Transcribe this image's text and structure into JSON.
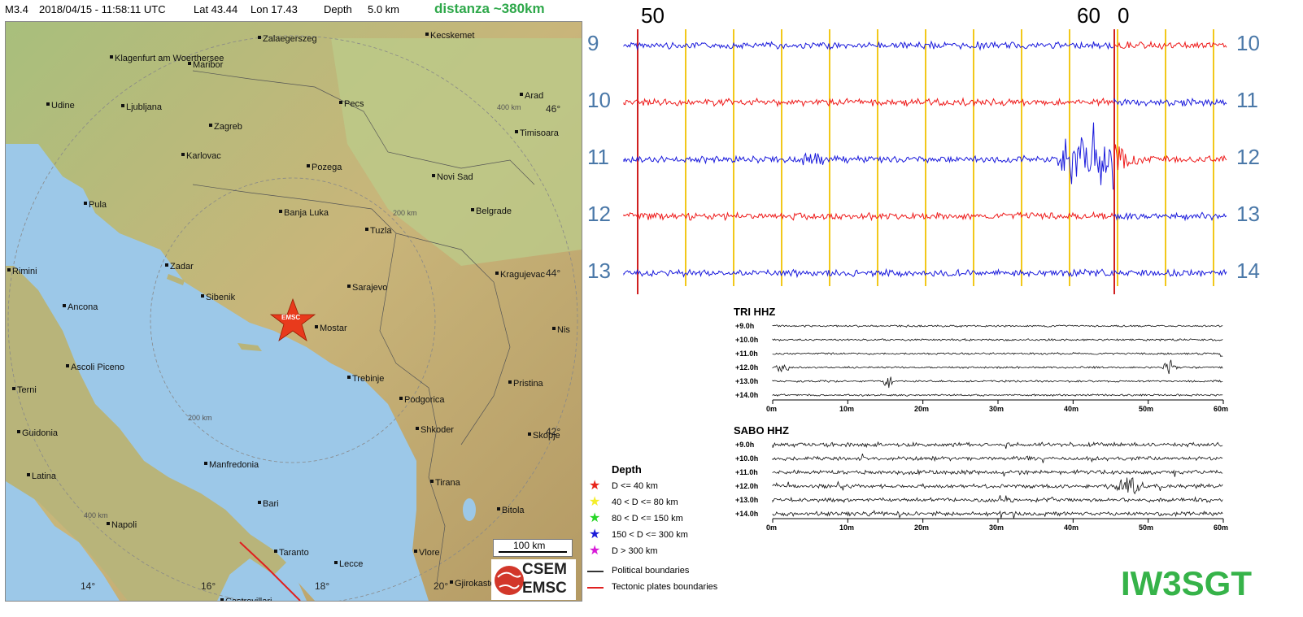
{
  "header": {
    "magnitude": "M3.4",
    "datetime": "2018/04/15 - 11:58:11 UTC",
    "lat": "Lat 43.44",
    "lon": "Lon 17.43",
    "depth": "Depth",
    "depth_value": "5.0 km",
    "distance": "distanza ~380km"
  },
  "map": {
    "cities": [
      "Zalaegerszeg",
      "Kecskemet",
      "Klagenfurt am Woerthersee",
      "Maribor",
      "Udine",
      "Ljubljana",
      "Pecs",
      "Arad",
      "Zagreb",
      "Timisoara",
      "Karlovac",
      "Pozega",
      "Novi Sad",
      "Pula",
      "Banja Luka",
      "Belgrade",
      "Tuzla",
      "Rimini",
      "Zadar",
      "Kragujevac",
      "Sarajevo",
      "Ancona",
      "Sibenik",
      "Mostar",
      "Nis",
      "Ascoli Piceno",
      "Trebinje",
      "Pristina",
      "Terni",
      "Podgorica",
      "Shkoder",
      "Guidonia",
      "Skopje",
      "Manfredonia",
      "Latina",
      "Tirana",
      "Bari",
      "Bitola",
      "Napoli",
      "Taranto",
      "Lecce",
      "Vlore",
      "Gjirokaster",
      "Castrovillari"
    ],
    "lat_labels": [
      "46°",
      "44°",
      "42°"
    ],
    "lon_labels": [
      "14°",
      "16°",
      "18°",
      "20°"
    ],
    "ring_labels": [
      "400 km",
      "200 km",
      "200 km",
      "400 km"
    ],
    "epicenter_label": "EMSC",
    "scale_label": "100 km",
    "logo_top": "CSEM",
    "logo_bottom": "EMSC",
    "colors": {
      "sea": "#9cc8e8",
      "land": "#c8c690",
      "epicenter": "#e83a1c",
      "tectonic": "#e02020"
    }
  },
  "helicorder": {
    "left_labels": [
      "9",
      "10",
      "11",
      "12",
      "13"
    ],
    "right_labels": [
      "10",
      "11",
      "12",
      "13",
      "14"
    ],
    "top_marks": [
      "50",
      "60",
      "0"
    ],
    "trace_colors": [
      "#1a1adc",
      "#ee1a1a",
      "#1a1adc",
      "#ee1a1a",
      "#1a1adc"
    ],
    "event_row": 2
  },
  "tri": {
    "title": "TRI HHZ",
    "rows": [
      "+9.0h",
      "+10.0h",
      "+11.0h",
      "+12.0h",
      "+13.0h",
      "+14.0h"
    ],
    "ticks": [
      "0m",
      "10m",
      "20m",
      "30m",
      "40m",
      "50m",
      "60m"
    ]
  },
  "sabo": {
    "title": "SABO HHZ",
    "rows": [
      "+9.0h",
      "+10.0h",
      "+11.0h",
      "+12.0h",
      "+13.0h",
      "+14.0h"
    ],
    "ticks": [
      "0m",
      "10m",
      "20m",
      "30m",
      "40m",
      "50m",
      "60m"
    ]
  },
  "legend": {
    "title": "Depth",
    "items": [
      {
        "label": "D <= 40 km",
        "color": "#e8241a"
      },
      {
        "label": "40 < D <= 80 km",
        "color": "#f4ee2a"
      },
      {
        "label": "80 < D <= 150 km",
        "color": "#28d628"
      },
      {
        "label": "150 < D <= 300 km",
        "color": "#1a1ad8"
      },
      {
        "label": "D > 300 km",
        "color": "#d81ad8"
      }
    ],
    "political": "Political boundaries",
    "tectonic": "Tectonic plates boundaries"
  },
  "signature": "IW3SGT"
}
